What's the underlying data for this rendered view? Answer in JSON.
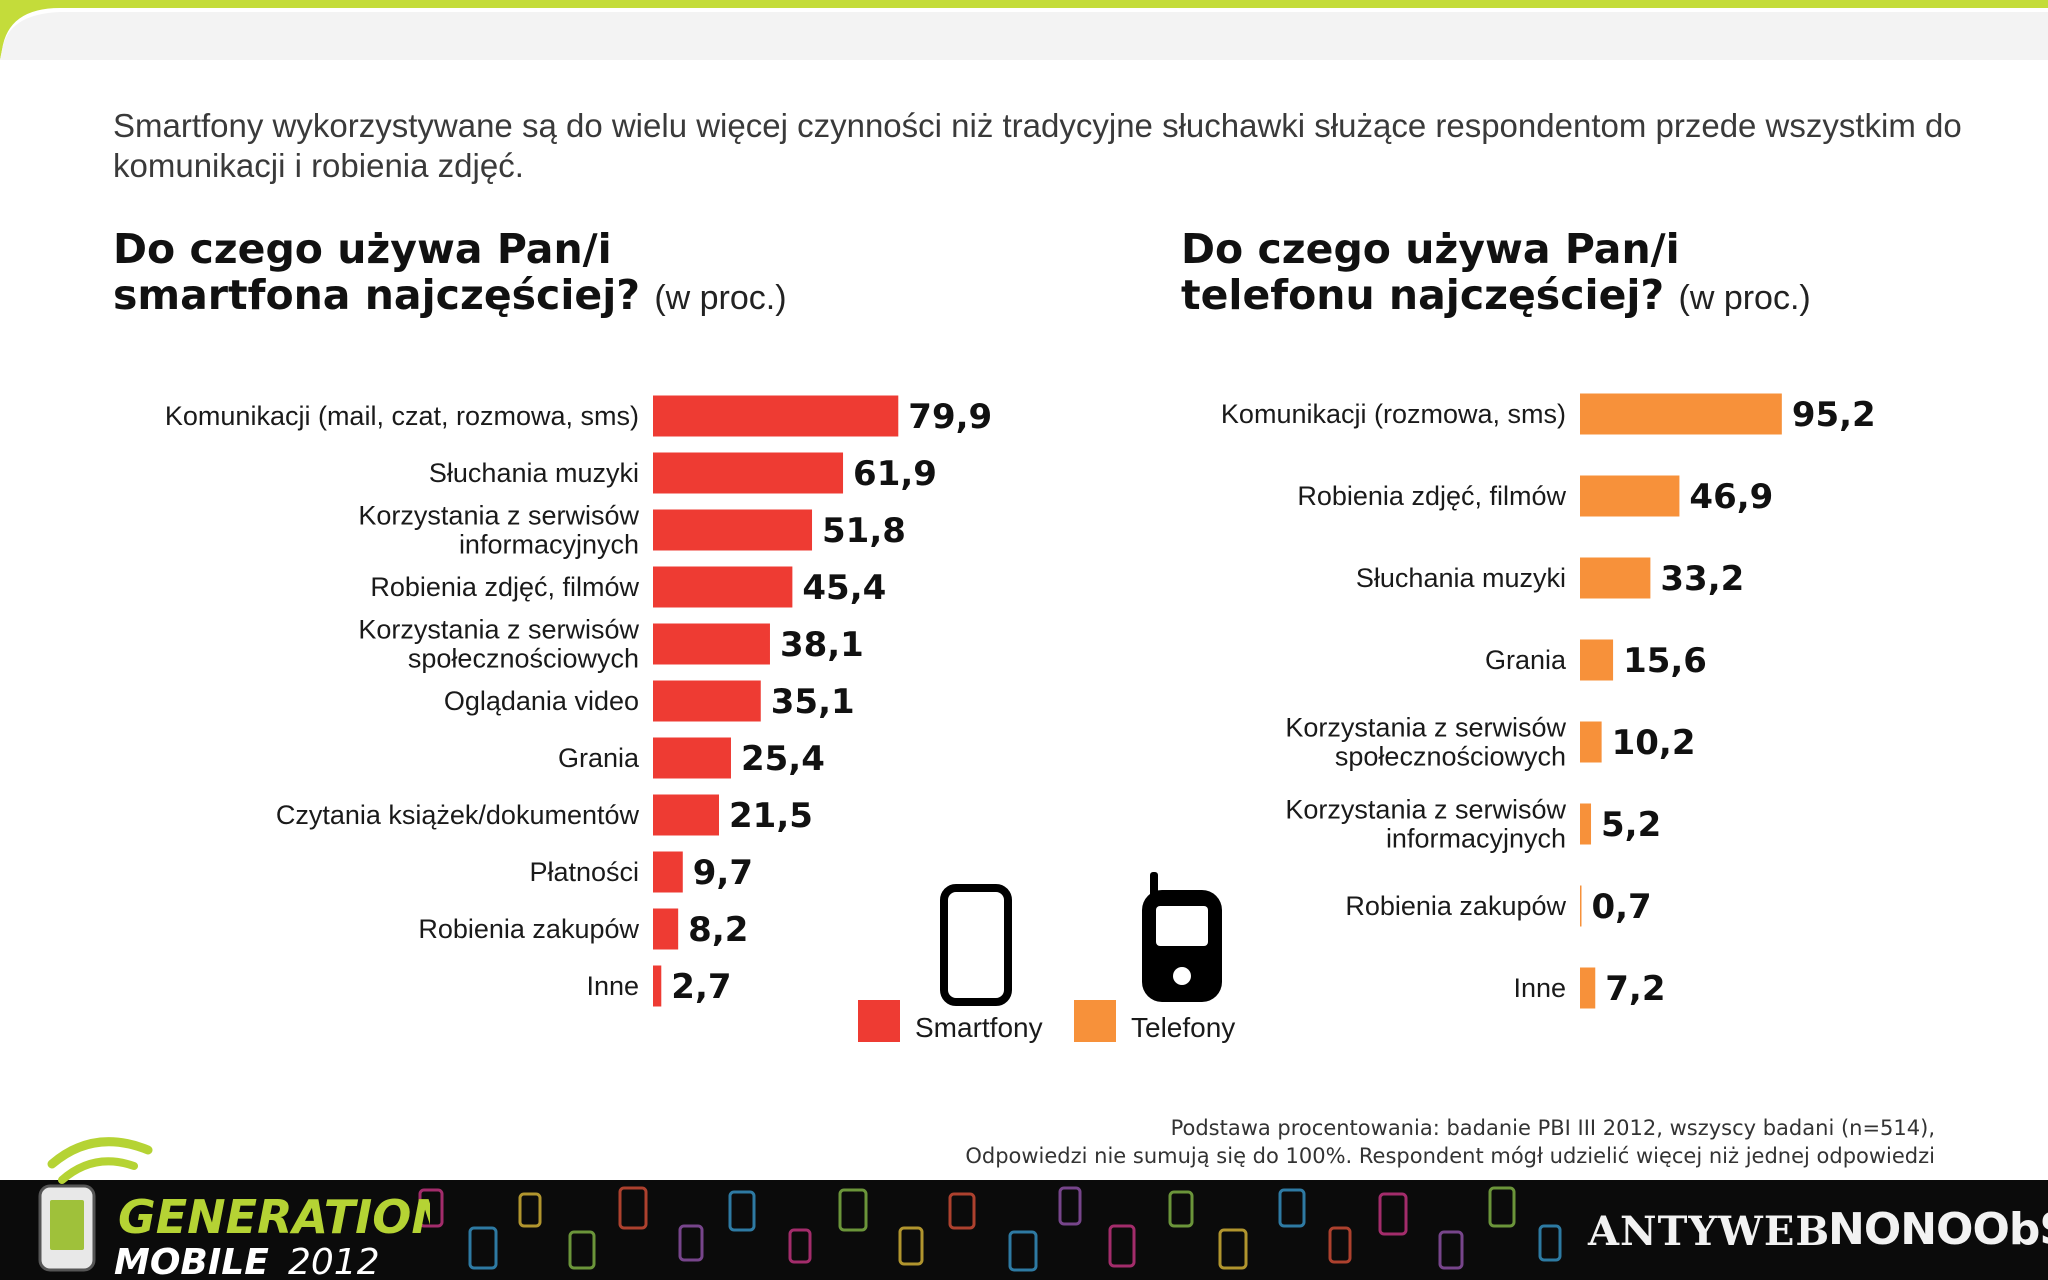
{
  "intro_text": "Smartfony wykorzystywane są do wielu więcej czynności niż tradycyjne słuchawki służące respondentom przede wszystkim do komunikacji i robienia zdjęć.",
  "colors": {
    "smartphone": "#ee3b33",
    "phone": "#f7913a",
    "accent_green": "#b5d334"
  },
  "chart_data": [
    {
      "type": "bar",
      "orientation": "horizontal",
      "title_line1": "Do czego używa Pan/i",
      "title_line2": "smartfona najczęściej?",
      "title_suffix": "(w proc.)",
      "categories": [
        [
          "Komunikacji (mail, czat, rozmowa, sms)"
        ],
        [
          "Słuchania muzyki"
        ],
        [
          "Korzystania z serwisów",
          "informacyjnych"
        ],
        [
          "Robienia zdjęć, filmów"
        ],
        [
          "Korzystania z serwisów",
          "społecznościowych"
        ],
        [
          "Oglądania video"
        ],
        [
          "Grania"
        ],
        [
          "Czytania książek/dokumentów"
        ],
        [
          "Płatności"
        ],
        [
          "Robienia zakupów"
        ],
        [
          "Inne"
        ]
      ],
      "values": [
        79.9,
        61.9,
        51.8,
        45.4,
        38.1,
        35.1,
        25.4,
        21.5,
        9.7,
        8.2,
        2.7
      ],
      "value_labels": [
        "79,9",
        "61,9",
        "51,8",
        "45,4",
        "38,1",
        "35,1",
        "25,4",
        "21,5",
        "9,7",
        "8,2",
        "2,7"
      ],
      "color": "#ee3b33"
    },
    {
      "type": "bar",
      "orientation": "horizontal",
      "title_line1": "Do czego używa Pan/i",
      "title_line2": "telefonu najczęściej?",
      "title_suffix": "(w proc.)",
      "categories": [
        [
          "Komunikacji (rozmowa, sms)"
        ],
        [
          "Robienia zdjęć, filmów"
        ],
        [
          "Słuchania muzyki"
        ],
        [
          "Grania"
        ],
        [
          "Korzystania z serwisów",
          "społecznościowych"
        ],
        [
          "Korzystania z serwisów",
          "informacyjnych"
        ],
        [
          "Robienia zakupów"
        ],
        [
          "Inne"
        ]
      ],
      "values": [
        95.2,
        46.9,
        33.2,
        15.6,
        10.2,
        5.2,
        0.7,
        7.2
      ],
      "value_labels": [
        "95,2",
        "46,9",
        "33,2",
        "15,6",
        "10,2",
        "5,2",
        "0,7",
        "7,2"
      ],
      "color": "#f7913a"
    }
  ],
  "legend": {
    "smartphone_label": "Smartfony",
    "phone_label": "Telefony",
    "smartphone_icon": "smartphone-icon",
    "phone_icon": "feature-phone-icon"
  },
  "footnote": {
    "line1": "Podstawa procentowania: badanie PBI III 2012, wszyscy badani (n=514),",
    "line2": "Odpowiedzi nie sumują się do 100%. Respondent mógł udzielić więcej niż jednej odpowiedzi"
  },
  "branding": {
    "logo_line1": "GENERATION",
    "logo_line2": "MOBILE",
    "logo_year": "2012",
    "partner1": "ANTYWEB",
    "partner2": "NONOObS"
  }
}
